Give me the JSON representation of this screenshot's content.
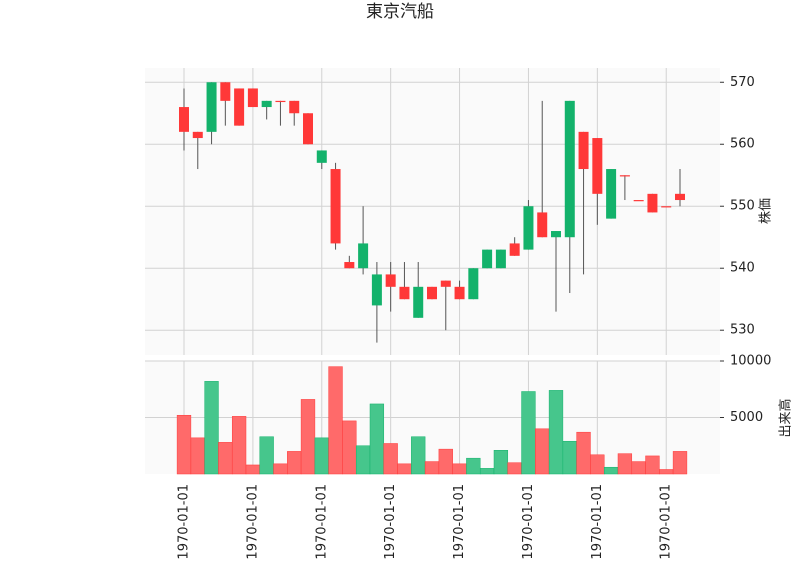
{
  "chart_data": {
    "type": "candlestick",
    "title": "東京汽船",
    "ylabel": "株価",
    "y2label": "出来高",
    "categories": [
      "1970-01-01",
      null,
      null,
      null,
      null,
      "1970-01-01",
      null,
      null,
      null,
      null,
      "1970-01-01",
      null,
      null,
      null,
      null,
      "1970-01-01",
      null,
      null,
      null,
      null,
      "1970-01-01",
      null,
      null,
      null,
      null,
      "1970-01-01",
      null,
      null,
      null,
      null,
      "1970-01-01",
      null,
      null,
      null,
      null,
      "1970-01-01",
      null
    ],
    "open": [
      566,
      562,
      562,
      570,
      569,
      569,
      566,
      567,
      567,
      565,
      557,
      556,
      541,
      540,
      534,
      539,
      537,
      532,
      537,
      538,
      537,
      535,
      540,
      540,
      544,
      543,
      549,
      545,
      545,
      562,
      561,
      548,
      555,
      551,
      552,
      550,
      552
    ],
    "high": [
      569,
      562,
      570,
      570,
      569,
      569,
      567,
      567,
      567,
      565,
      559,
      557,
      542,
      550,
      541,
      541,
      541,
      541,
      537,
      538,
      538,
      540,
      543,
      543,
      545,
      551,
      567,
      546,
      567,
      562,
      561,
      556,
      555,
      551,
      552,
      550,
      556
    ],
    "low": [
      559,
      556,
      560,
      563,
      563,
      566,
      564,
      563,
      563,
      560,
      556,
      543,
      540,
      539,
      528,
      533,
      535,
      532,
      535,
      530,
      535,
      535,
      540,
      540,
      542,
      543,
      545,
      533,
      536,
      539,
      547,
      548,
      551,
      551,
      549,
      550,
      550
    ],
    "close": [
      562,
      561,
      570,
      567,
      563,
      566,
      567,
      567,
      565,
      560,
      559,
      544,
      540,
      544,
      539,
      537,
      535,
      537,
      535,
      537,
      535,
      540,
      543,
      543,
      542,
      550,
      545,
      546,
      567,
      556,
      552,
      556,
      555,
      551,
      549,
      550,
      551
    ],
    "volume": [
      5200,
      3200,
      8200,
      2800,
      5100,
      800,
      3300,
      900,
      2000,
      6600,
      3200,
      9500,
      4700,
      2500,
      6200,
      2700,
      900,
      3300,
      1100,
      2200,
      900,
      1400,
      500,
      2100,
      1000,
      7300,
      4000,
      7400,
      2900,
      3700,
      1700,
      600,
      1800,
      1100,
      1600,
      400,
      2000
    ],
    "up_color": "#13b26b",
    "down_color": "#ff3838",
    "up_volume_color": "#46c68c",
    "down_volume_color": "#ff6a6a",
    "ylim": [
      526,
      572.3
    ],
    "yticks": [
      530,
      540,
      550,
      560,
      570
    ],
    "y2lim": [
      0,
      10000
    ],
    "y2ticks": [
      5000,
      10000
    ],
    "grid": true
  }
}
